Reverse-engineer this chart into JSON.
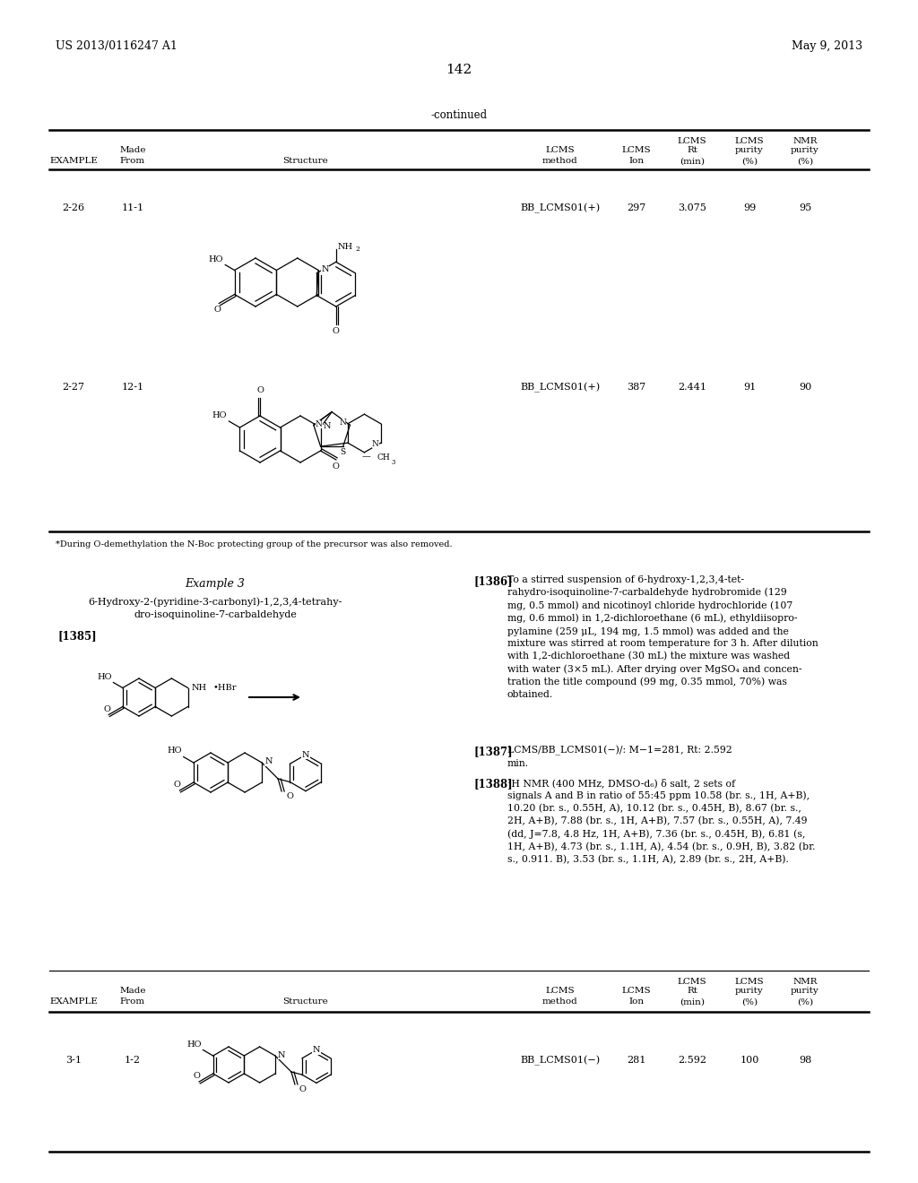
{
  "patent_number": "US 2013/0116247 A1",
  "date": "May 9, 2013",
  "page_number": "142",
  "continued_label": "-continued",
  "bg": "#ffffff",
  "t1_rows": [
    {
      "ex": "2-26",
      "mf": "11-1",
      "lm": "BB_LCMS01(+)",
      "li": "297",
      "rt": "3.075",
      "p1": "99",
      "p2": "95"
    },
    {
      "ex": "2-27",
      "mf": "12-1",
      "lm": "BB_LCMS01(+)",
      "li": "387",
      "rt": "2.441",
      "p1": "91",
      "p2": "90"
    }
  ],
  "footnote": "*During O-demethylation the N-Boc protecting group of the precursor was also removed.",
  "ex3_title": "Example 3",
  "ex3_name1": "6-Hydroxy-2-(pyridine-3-carbonyl)-1,2,3,4-tetrahy-",
  "ex3_name2": "dro-isoquinoline-7-carbaldehyde",
  "p1385": "[1385]",
  "p1386lbl": "[1386]",
  "p1386": "To a stirred suspension of 6-hydroxy-1,2,3,4-tet-\nrahydro-isoquinoline-7-carbaldehyde hydrobromide (129\nmg, 0.5 mmol) and nicotinoyl chloride hydrochloride (107\nmg, 0.6 mmol) in 1,2-dichloroethane (6 mL), ethyldiisopro-\npylamine (259 μL, 194 mg, 1.5 mmol) was added and the\nmixture was stirred at room temperature for 3 h. After dilution\nwith 1,2-dichloroethane (30 mL) the mixture was washed\nwith water (3×5 mL). After drying over MgSO₄ and concen-\ntration the title compound (99 mg, 0.35 mmol, 70%) was\nobtained.",
  "p1387lbl": "[1387]",
  "p1387": "LCMS/BB_LCMS01(−)/: M−1=281, Rt: 2.592\nmin.",
  "p1388lbl": "[1388]",
  "p1388": "¹H NMR (400 MHz, DMSO-d₆) δ salt, 2 sets of\nsignals A and B in ratio of 55:45 ppm 10.58 (br. s., 1H, A+B),\n10.20 (br. s., 0.55H, A), 10.12 (br. s., 0.45H, B), 8.67 (br. s.,\n2H, A+B), 7.88 (br. s., 1H, A+B), 7.57 (br. s., 0.55H, A), 7.49\n(dd, J=7.8, 4.8 Hz, 1H, A+B), 7.36 (br. s., 0.45H, B), 6.81 (s,\n1H, A+B), 4.73 (br. s., 1.1H, A), 4.54 (br. s., 0.9H, B), 3.82 (br.\ns., 0.911. B), 3.53 (br. s., 1.1H, A), 2.89 (br. s., 2H, A+B).",
  "t2_rows": [
    {
      "ex": "3-1",
      "mf": "1-2",
      "lm": "BB_LCMS01(−)",
      "li": "281",
      "rt": "2.592",
      "p1": "100",
      "p2": "98"
    }
  ]
}
